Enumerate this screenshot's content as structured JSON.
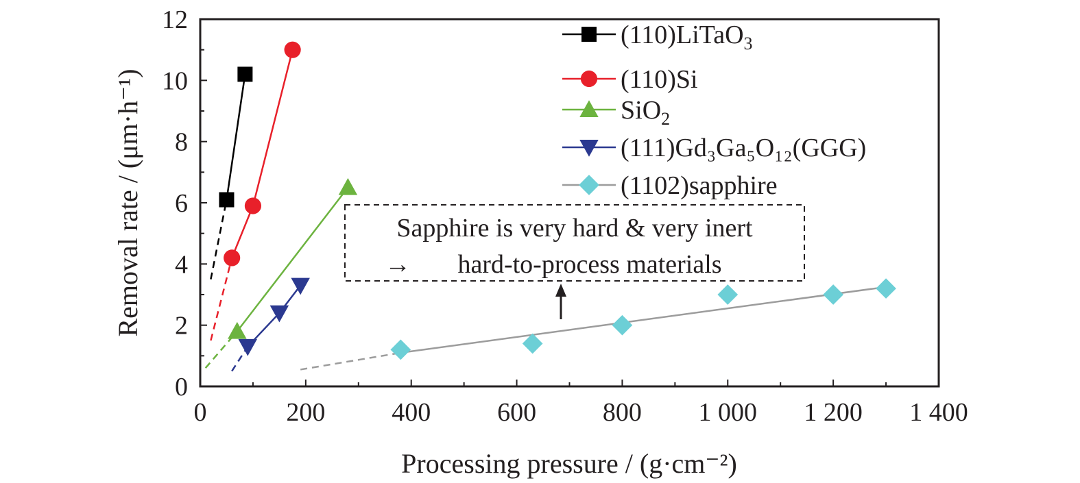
{
  "chart_data": {
    "type": "line",
    "title": "",
    "xlabel": "Processing pressure / (g·cm⁻²)",
    "ylabel": "Removal rate / (μm·h⁻¹)",
    "xlim": [
      0,
      1400
    ],
    "ylim": [
      0,
      12
    ],
    "xticks": [
      0,
      200,
      400,
      600,
      800,
      1000,
      1200,
      1400
    ],
    "xtick_labels": [
      "0",
      "200",
      "400",
      "600",
      "800",
      "1 000",
      "1 200",
      "1 400"
    ],
    "yticks": [
      0,
      2,
      4,
      6,
      8,
      10,
      12
    ],
    "ytick_labels": [
      "0",
      "2",
      "4",
      "6",
      "8",
      "10",
      "12"
    ],
    "grid": false,
    "legend_position": "top-right",
    "series": [
      {
        "name": "(110)LiTaO",
        "name_sub": "3",
        "color": "#000000",
        "marker": "square",
        "x": [
          50,
          85
        ],
        "y": [
          6.1,
          10.2
        ],
        "extrapolation": {
          "x": [
            20,
            50
          ],
          "y": [
            3.5,
            6.1
          ]
        }
      },
      {
        "name": "(110)Si",
        "name_sub": "",
        "color": "#e8202a",
        "marker": "circle",
        "x": [
          60,
          100,
          175
        ],
        "y": [
          4.2,
          5.9,
          11.0
        ],
        "extrapolation": {
          "x": [
            20,
            60
          ],
          "y": [
            1.5,
            4.2
          ]
        }
      },
      {
        "name": "SiO",
        "name_sub": "2",
        "color": "#6cb33f",
        "marker": "triangle-up",
        "x": [
          70,
          280
        ],
        "y": [
          1.8,
          6.5
        ],
        "extrapolation": {
          "x": [
            10,
            70
          ],
          "y": [
            0.6,
            1.8
          ]
        }
      },
      {
        "name": "(111)Gd₃Ga₅O₁₂(GGG)",
        "name_sub": "",
        "color": "#2b3990",
        "marker": "triangle-down",
        "x": [
          90,
          150,
          190
        ],
        "y": [
          1.3,
          2.4,
          3.3
        ],
        "extrapolation": {
          "x": [
            60,
            90
          ],
          "y": [
            0.5,
            1.3
          ]
        }
      },
      {
        "name": "(1102)sapphire",
        "name_sub": "",
        "color": "#6ccfd6",
        "line_color": "#9c9c9c",
        "marker": "diamond",
        "x": [
          380,
          630,
          800,
          1000,
          1200,
          1300
        ],
        "y": [
          1.2,
          1.4,
          2.0,
          3.0,
          3.0,
          3.2
        ],
        "fit": {
          "x": [
            380,
            1300
          ],
          "y": [
            1.1,
            3.25
          ]
        },
        "extrapolation": {
          "x": [
            190,
            380
          ],
          "y": [
            0.55,
            1.1
          ]
        }
      }
    ],
    "annotation": {
      "line1": "Sapphire is very hard & very inert",
      "line2_arrow": "→",
      "line2": "hard-to-process materials"
    }
  }
}
